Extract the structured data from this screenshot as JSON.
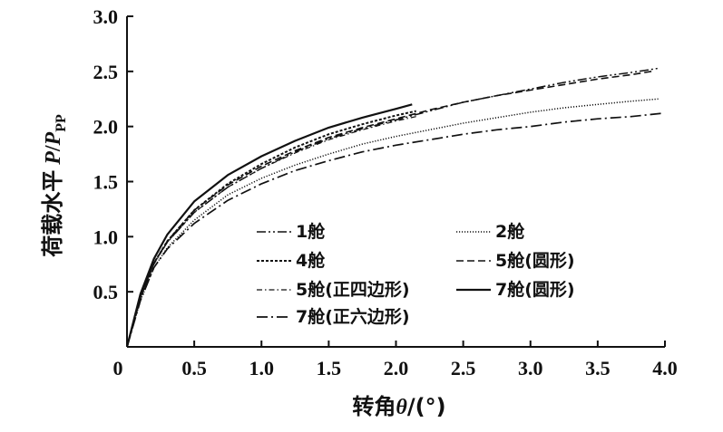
{
  "chart_data": {
    "type": "line",
    "xlabel_prefix": "转角",
    "xlabel_var": "θ",
    "xlabel_suffix": "/(°)",
    "ylabel_prefix": "荷载水平",
    "ylabel_var": "P",
    "ylabel_slash": "/",
    "ylabel_var2": "P",
    "ylabel_sub": "PP",
    "xlim": [
      0,
      4.0
    ],
    "ylim": [
      0,
      3.0
    ],
    "xticks": [
      "0",
      "0.5",
      "1.0",
      "1.5",
      "2.0",
      "2.5",
      "3.0",
      "3.5",
      "4.0"
    ],
    "xtick_values": [
      0,
      0.5,
      1.0,
      1.5,
      2.0,
      2.5,
      3.0,
      3.5,
      4.0
    ],
    "yticks": [
      "0.5",
      "1.0",
      "1.5",
      "2.0",
      "2.5",
      "3.0"
    ],
    "ytick_values": [
      0.5,
      1.0,
      1.5,
      2.0,
      2.5,
      3.0
    ],
    "legend_placement": "center",
    "series": [
      {
        "name": "1舱",
        "style": "dashdotdot",
        "x": [
          0,
          0.1,
          0.2,
          0.3,
          0.5,
          0.75,
          1.0,
          1.25,
          1.5,
          1.75,
          2.0,
          2.25,
          2.5,
          2.75,
          3.0,
          3.25,
          3.5,
          3.75,
          3.96
        ],
        "y": [
          0,
          0.45,
          0.76,
          0.95,
          1.22,
          1.45,
          1.62,
          1.77,
          1.89,
          1.98,
          2.06,
          2.14,
          2.22,
          2.28,
          2.34,
          2.4,
          2.45,
          2.49,
          2.53
        ]
      },
      {
        "name": "2舱",
        "style": "dotted",
        "x": [
          0,
          0.1,
          0.2,
          0.3,
          0.5,
          0.75,
          1.0,
          1.25,
          1.5,
          1.75,
          2.0,
          2.25,
          2.5,
          2.75,
          3.0,
          3.25,
          3.5,
          3.75,
          3.95
        ],
        "y": [
          0,
          0.42,
          0.72,
          0.9,
          1.15,
          1.38,
          1.53,
          1.65,
          1.75,
          1.84,
          1.91,
          1.97,
          2.03,
          2.08,
          2.13,
          2.17,
          2.2,
          2.23,
          2.25
        ]
      },
      {
        "name": "4舱",
        "style": "dense-dash",
        "x": [
          0,
          0.1,
          0.2,
          0.3,
          0.5,
          0.75,
          1.0,
          1.25,
          1.5,
          1.75,
          2.0,
          2.15
        ],
        "y": [
          0,
          0.45,
          0.76,
          0.96,
          1.24,
          1.48,
          1.66,
          1.81,
          1.93,
          2.02,
          2.1,
          2.14
        ]
      },
      {
        "name": "5舱(圆形)",
        "style": "dashed",
        "x": [
          0,
          0.1,
          0.2,
          0.3,
          0.5,
          0.75,
          1.0,
          1.25,
          1.5,
          1.75,
          2.0,
          2.25,
          2.5,
          2.75,
          3.0,
          3.25,
          3.5,
          3.75,
          3.9
        ],
        "y": [
          0,
          0.45,
          0.76,
          0.96,
          1.24,
          1.47,
          1.64,
          1.78,
          1.9,
          1.99,
          2.07,
          2.15,
          2.22,
          2.28,
          2.33,
          2.38,
          2.43,
          2.47,
          2.5
        ]
      },
      {
        "name": "5舱(正四边形)",
        "style": "dashdot-fine",
        "x": [
          0,
          0.1,
          0.2,
          0.3,
          0.5,
          0.75,
          1.0,
          1.25,
          1.5,
          1.75,
          2.0,
          2.15
        ],
        "y": [
          0,
          0.45,
          0.75,
          0.95,
          1.22,
          1.45,
          1.62,
          1.76,
          1.88,
          1.97,
          2.05,
          2.09
        ]
      },
      {
        "name": "7舱(圆形)",
        "style": "solid",
        "x": [
          0,
          0.1,
          0.2,
          0.3,
          0.5,
          0.75,
          1.0,
          1.25,
          1.5,
          1.75,
          2.0,
          2.12
        ],
        "y": [
          0,
          0.48,
          0.8,
          1.02,
          1.32,
          1.56,
          1.73,
          1.87,
          1.99,
          2.08,
          2.16,
          2.2
        ]
      },
      {
        "name": "7舱(正六边形)",
        "style": "dashdot",
        "x": [
          0,
          0.1,
          0.2,
          0.3,
          0.5,
          0.75,
          1.0,
          1.25,
          1.5,
          1.75,
          2.0,
          2.25,
          2.5,
          2.75,
          3.0,
          3.25,
          3.5,
          3.75,
          3.98
        ],
        "y": [
          0,
          0.42,
          0.72,
          0.89,
          1.12,
          1.33,
          1.48,
          1.6,
          1.69,
          1.77,
          1.83,
          1.88,
          1.93,
          1.97,
          2.0,
          2.04,
          2.07,
          2.09,
          2.12
        ]
      }
    ]
  }
}
